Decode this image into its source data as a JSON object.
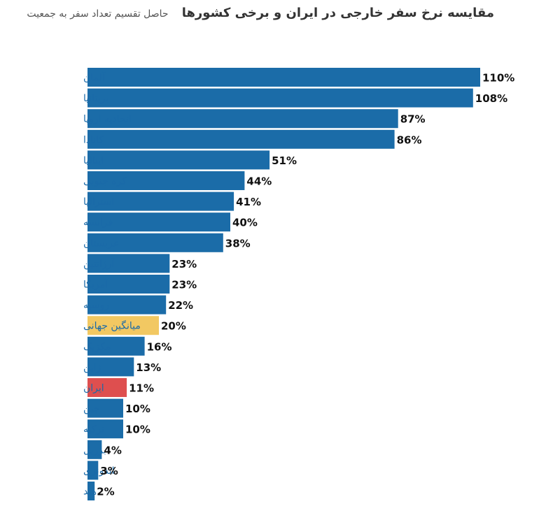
{
  "header": {
    "title": "مقایسه نرخ سفر خارجی در ایران و برخی کشورها",
    "subtitle": "حاصل تقسیم تعداد سفر به جمعیت"
  },
  "colors": {
    "bar": "#1b6ca8",
    "highlight_world": "#f2c862",
    "highlight_iran": "#de4f4f"
  },
  "chart_data": {
    "type": "bar",
    "orientation": "horizontal",
    "title": "مقایسه نرخ سفر خارجی در ایران و برخی کشورها",
    "subtitle": "حاصل تقسیم تعداد سفر به جمعیت",
    "unit": "%",
    "xlim": [
      0,
      112
    ],
    "grid": false,
    "legend": "none",
    "categories": [
      "آلمان",
      "بریتانیا",
      "اتحادیه اروپا",
      "کانادا",
      "ایتالیا",
      "کره جنوبی",
      "استرالیا",
      "فرانسه",
      "عربستان",
      "آرژانتین",
      "آمریکا",
      "روسیه",
      "میانگین جهانی",
      "مکزیک",
      "ژاپن",
      "ایران",
      "چین",
      "ترکیه",
      "برزیل",
      "اندونزی",
      "هند"
    ],
    "values": [
      110,
      108,
      87,
      86,
      51,
      44,
      41,
      40,
      38,
      23,
      23,
      22,
      20,
      16,
      13,
      11,
      10,
      10,
      4,
      3,
      2
    ],
    "value_labels": [
      "110%",
      "108%",
      "87%",
      "86%",
      "51%",
      "44%",
      "41%",
      "40%",
      "38%",
      "23%",
      "23%",
      "22%",
      "20%",
      "16%",
      "13%",
      "11%",
      "10%",
      "10%",
      "4%",
      "3%",
      "2%"
    ],
    "highlights": {
      "میانگین جهانی": "highlight_world",
      "ایران": "highlight_iran"
    }
  }
}
